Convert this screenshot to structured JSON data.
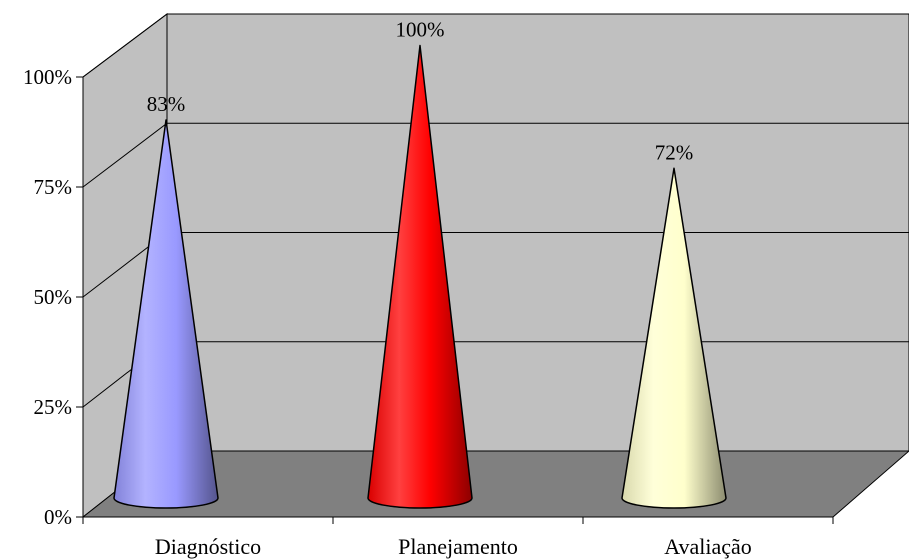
{
  "chart_data": {
    "type": "bar",
    "style": "3d-cone",
    "categories": [
      "Diagnóstico",
      "Planejamento",
      "Avaliação"
    ],
    "values": [
      83,
      100,
      72
    ],
    "data_labels": [
      "83%",
      "100%",
      "72%"
    ],
    "yticks": [
      {
        "value": 0,
        "label": "0%"
      },
      {
        "value": 25,
        "label": "25%"
      },
      {
        "value": 50,
        "label": "50%"
      },
      {
        "value": 75,
        "label": "75%"
      },
      {
        "value": 100,
        "label": "100%"
      }
    ],
    "ylim": [
      0,
      100
    ],
    "grid": true,
    "legend": "none",
    "colors": [
      "#9999ff",
      "#ff0000",
      "#ffffcc"
    ],
    "wall_color": "#c0c0c0",
    "floor_color": "#808080"
  }
}
